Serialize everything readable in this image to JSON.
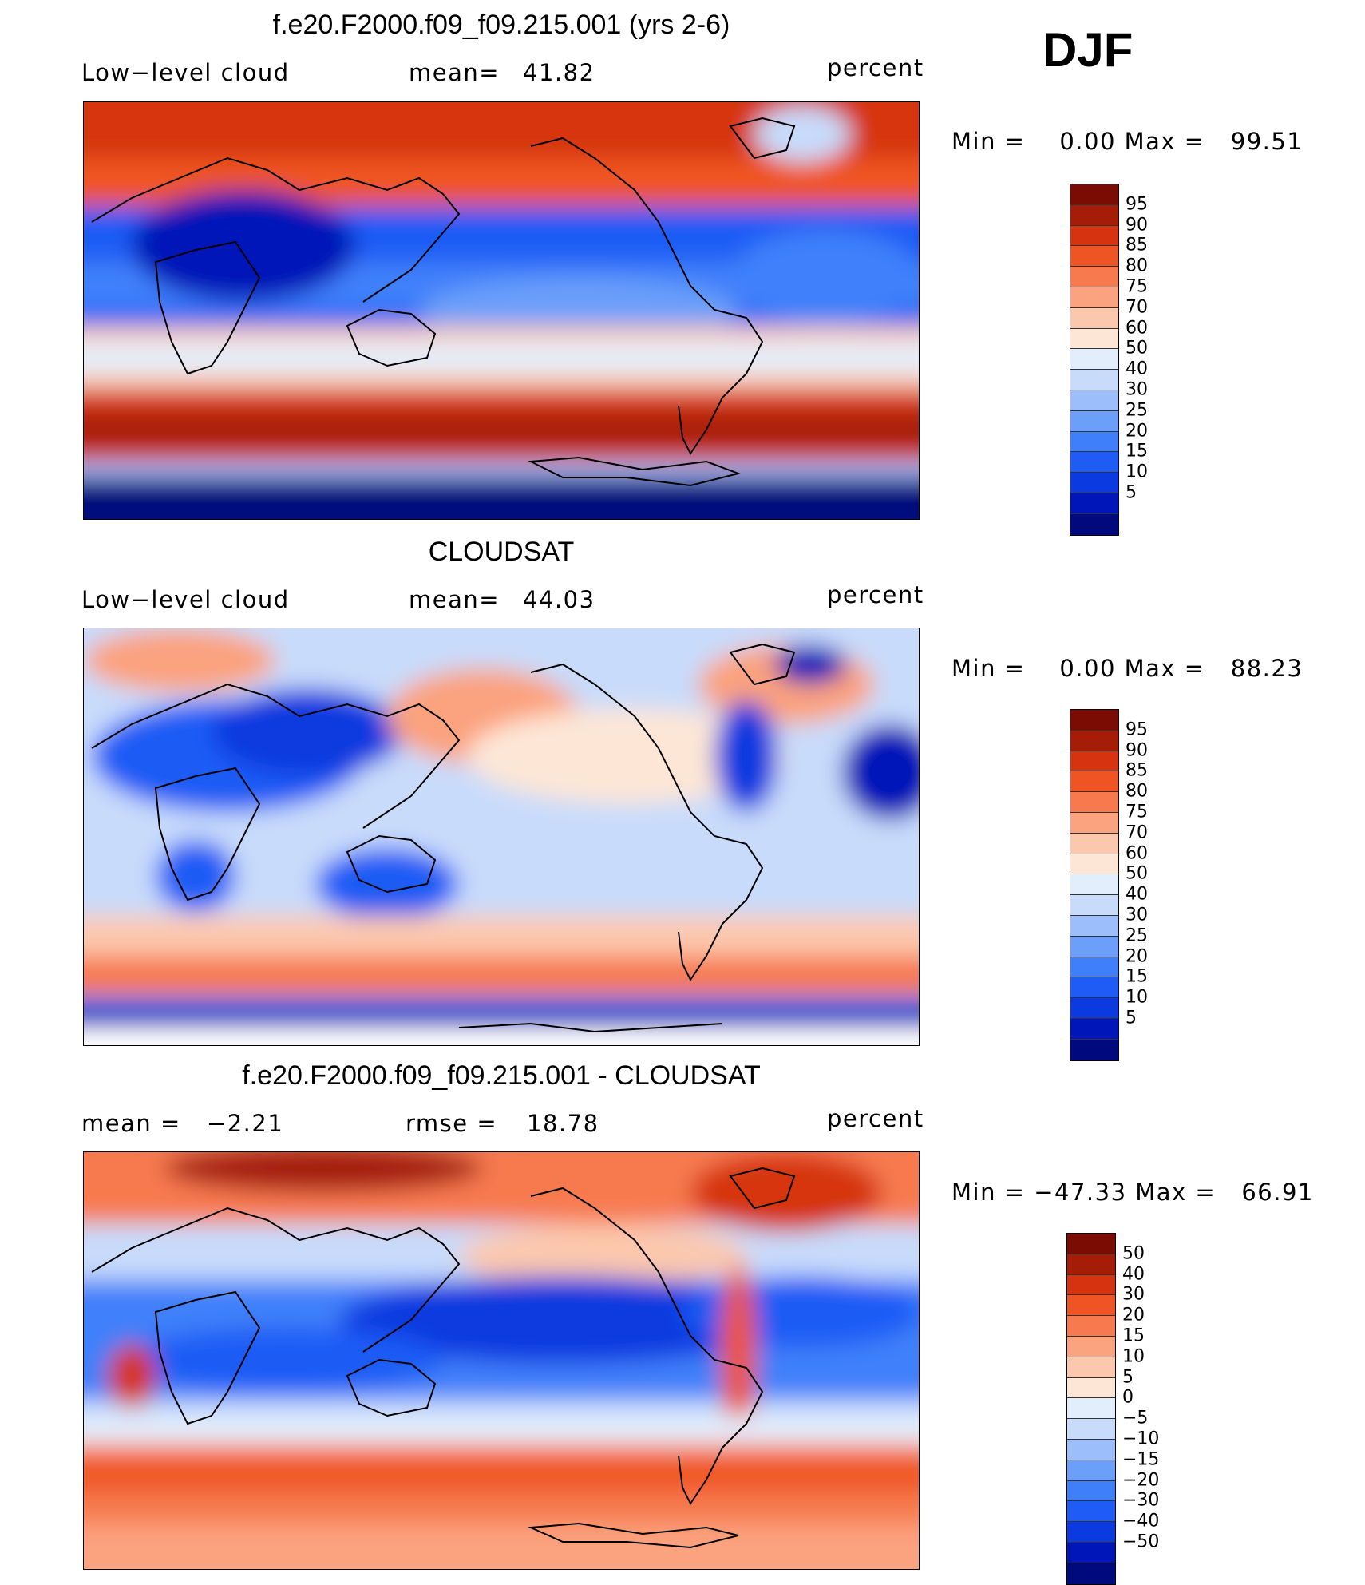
{
  "season": "DJF",
  "colors": {
    "abs_scale": [
      "#000a7d",
      "#0016b8",
      "#0a3ae0",
      "#1e5cf5",
      "#3f80fa",
      "#6b9ffa",
      "#9cbefa",
      "#c8dbfb",
      "#e3eefc",
      "#fde6d6",
      "#fcc8ad",
      "#fba27e",
      "#f77a4f",
      "#ef5424",
      "#d63410",
      "#a51d07",
      "#7a0c03"
    ],
    "diff_scale": [
      "#000a7d",
      "#0016b8",
      "#0a3ae0",
      "#1e5cf5",
      "#3f80fa",
      "#6b9ffa",
      "#9cbefa",
      "#c8dbfb",
      "#e3eefc",
      "#fde6d6",
      "#fcc8ad",
      "#fba27e",
      "#f77a4f",
      "#ef5424",
      "#d63410",
      "#a51d07",
      "#7a0c03"
    ]
  },
  "panels": [
    {
      "title": "f.e20.F2000.f09_f09.215.001 (yrs 2-6)",
      "left_label": "Low−level cloud",
      "stat_label": "mean=",
      "stat_value": "41.82",
      "units": "percent",
      "minmax": "Min =    0.00 Max =   99.51",
      "levels": [
        "95",
        "90",
        "85",
        "80",
        "75",
        "70",
        "60",
        "50",
        "40",
        "30",
        "25",
        "20",
        "15",
        "10",
        "5"
      ]
    },
    {
      "title": "CLOUDSAT",
      "left_label": "Low−level cloud",
      "stat_label": "mean=",
      "stat_value": "44.03",
      "units": "percent",
      "minmax": "Min =    0.00 Max =   88.23",
      "levels": [
        "95",
        "90",
        "85",
        "80",
        "75",
        "70",
        "60",
        "50",
        "40",
        "30",
        "25",
        "20",
        "15",
        "10",
        "5"
      ]
    },
    {
      "title": "f.e20.F2000.f09_f09.215.001 - CLOUDSAT",
      "left_label": "mean =   −2.21",
      "stat_label": "rmse =",
      "stat_value": "18.78",
      "units": "percent",
      "minmax": "Min = −47.33 Max =   66.91",
      "levels": [
        "50",
        "40",
        "30",
        "20",
        "15",
        "10",
        "5",
        "0",
        "−5",
        "−10",
        "−15",
        "−20",
        "−30",
        "−40",
        "−50"
      ]
    }
  ]
}
